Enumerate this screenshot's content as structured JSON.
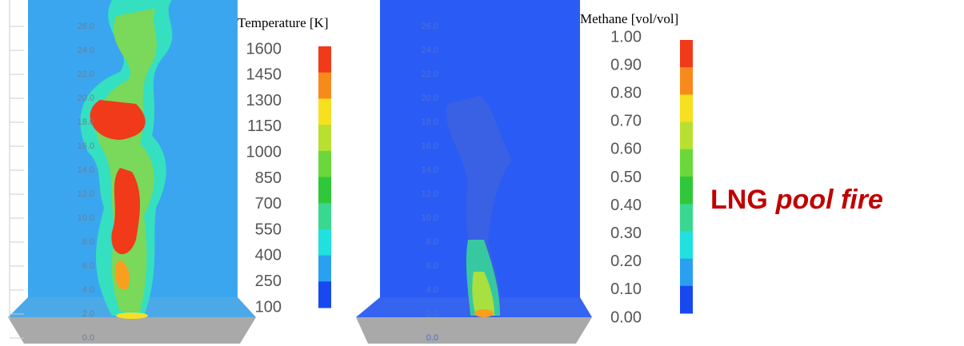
{
  "panels": [
    {
      "height_labels": [
        "26.0",
        "24.0",
        "22.0",
        "20.0",
        "18.0",
        "16.0",
        "14.0",
        "12.0",
        "10.0",
        "8.0",
        "6.0",
        "4.0",
        "2.0",
        "0.0"
      ],
      "colorbar_title": "Temperature [K]",
      "colorbar_labels": [
        "1600",
        "1450",
        "1300",
        "1150",
        "1000",
        "850",
        "700",
        "550",
        "400",
        "250",
        "100"
      ]
    },
    {
      "height_labels": [
        "26.0",
        "24.0",
        "22.0",
        "20.0",
        "18.0",
        "16.0",
        "14.0",
        "12.0",
        "10.0",
        "8.0",
        "6.0",
        "4.0",
        "2.0",
        "0.0"
      ],
      "colorbar_title": "Methane [vol/vol]",
      "colorbar_labels": [
        "1.00",
        "0.90",
        "0.80",
        "0.70",
        "0.60",
        "0.50",
        "0.40",
        "0.30",
        "0.20",
        "0.10",
        "0.00"
      ]
    }
  ],
  "caption": {
    "bold": "LNG",
    "italic": "pool fire"
  }
}
